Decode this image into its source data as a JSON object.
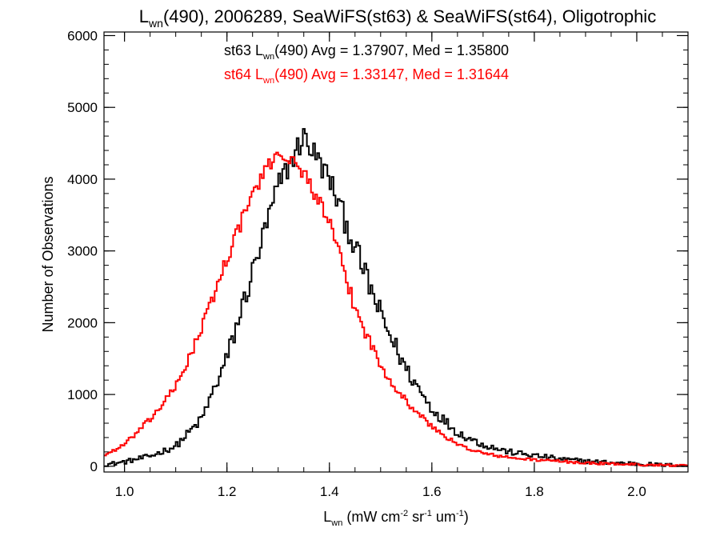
{
  "chart_data": {
    "type": "line",
    "title": {
      "main": "L",
      "sub": "wn",
      "rest": "(490), 2006289, SeaWiFS(st63) & SeaWiFS(st64), Oligotrophic"
    },
    "xlabel": {
      "main": "L",
      "sub": "wn",
      "units": [
        {
          "text": " (mW cm"
        },
        {
          "text": "-2",
          "sup": true
        },
        {
          "text": " sr"
        },
        {
          "text": "-1",
          "sup": true
        },
        {
          "text": " um"
        },
        {
          "text": "-1",
          "sup": true
        },
        {
          "text": ")"
        }
      ]
    },
    "ylabel": "Number of Observations",
    "xlim": [
      0.96,
      2.1
    ],
    "ylim": [
      -80,
      6050
    ],
    "x_ticks": [
      1.0,
      1.2,
      1.4,
      1.6,
      1.8,
      2.0
    ],
    "x_tick_labels": [
      "1.0",
      "1.2",
      "1.4",
      "1.6",
      "1.8",
      "2.0"
    ],
    "y_ticks": [
      0,
      1000,
      2000,
      3000,
      4000,
      5000,
      6000
    ],
    "y_tick_labels": [
      "0",
      "1000",
      "2000",
      "3000",
      "4000",
      "5000",
      "6000"
    ],
    "grid": false,
    "annotations": [
      {
        "series": "st63",
        "prefix": "st63 L",
        "sub": "wn",
        "rest": "(490) Avg = 1.37907, Med = 1.35800",
        "color": "#000000"
      },
      {
        "series": "st64",
        "prefix": "st64 L",
        "sub": "wn",
        "rest": "(490) Avg = 1.33147, Med = 1.31644",
        "color": "#ff0000"
      }
    ],
    "series": [
      {
        "name": "st63",
        "color": "#000000",
        "jitter": 180,
        "points": [
          [
            0.96,
            20
          ],
          [
            1.0,
            60
          ],
          [
            1.05,
            140
          ],
          [
            1.1,
            280
          ],
          [
            1.15,
            650
          ],
          [
            1.2,
            1500
          ],
          [
            1.25,
            2700
          ],
          [
            1.3,
            3900
          ],
          [
            1.35,
            4600
          ],
          [
            1.4,
            4000
          ],
          [
            1.45,
            3050
          ],
          [
            1.5,
            2100
          ],
          [
            1.55,
            1350
          ],
          [
            1.6,
            800
          ],
          [
            1.65,
            470
          ],
          [
            1.7,
            300
          ],
          [
            1.75,
            200
          ],
          [
            1.8,
            150
          ],
          [
            1.85,
            100
          ],
          [
            1.9,
            70
          ],
          [
            1.95,
            50
          ],
          [
            2.0,
            35
          ],
          [
            2.05,
            15
          ],
          [
            2.1,
            5
          ]
        ]
      },
      {
        "name": "st64",
        "color": "#ff0000",
        "jitter": 100,
        "points": [
          [
            0.96,
            150
          ],
          [
            1.0,
            300
          ],
          [
            1.05,
            650
          ],
          [
            1.1,
            1100
          ],
          [
            1.15,
            1900
          ],
          [
            1.2,
            2900
          ],
          [
            1.25,
            3800
          ],
          [
            1.3,
            4400
          ],
          [
            1.35,
            4100
          ],
          [
            1.4,
            3400
          ],
          [
            1.45,
            2200
          ],
          [
            1.5,
            1400
          ],
          [
            1.55,
            900
          ],
          [
            1.6,
            550
          ],
          [
            1.65,
            300
          ],
          [
            1.7,
            180
          ],
          [
            1.75,
            120
          ],
          [
            1.8,
            90
          ],
          [
            1.85,
            70
          ],
          [
            1.9,
            45
          ],
          [
            1.95,
            35
          ],
          [
            2.0,
            25
          ],
          [
            2.05,
            15
          ],
          [
            2.1,
            5
          ]
        ]
      }
    ]
  }
}
